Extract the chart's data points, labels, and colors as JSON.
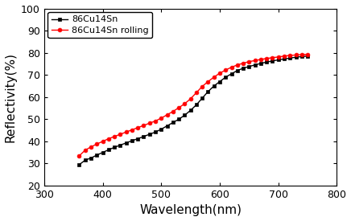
{
  "series1_label": "86Cu14Sn",
  "series2_label": "86Cu14Sn rolling",
  "series1_color": "black",
  "series2_color": "red",
  "series1_marker": "s",
  "series2_marker": "o",
  "wavelength": [
    360,
    370,
    380,
    390,
    400,
    410,
    420,
    430,
    440,
    450,
    460,
    470,
    480,
    490,
    500,
    510,
    520,
    530,
    540,
    550,
    560,
    570,
    580,
    590,
    600,
    610,
    620,
    630,
    640,
    650,
    660,
    670,
    680,
    690,
    700,
    710,
    720,
    730,
    740,
    750
  ],
  "reflectivity_86Cu14Sn": [
    29.5,
    31.5,
    32.5,
    33.8,
    35.0,
    36.2,
    37.3,
    38.3,
    39.3,
    40.3,
    41.2,
    42.2,
    43.2,
    44.2,
    45.5,
    47.0,
    48.5,
    50.0,
    51.8,
    54.0,
    56.5,
    59.5,
    62.5,
    65.0,
    67.0,
    69.0,
    70.5,
    72.0,
    73.0,
    73.8,
    74.5,
    75.2,
    75.8,
    76.3,
    76.8,
    77.2,
    77.6,
    78.0,
    78.3,
    78.5
  ],
  "reflectivity_rolling": [
    33.5,
    36.0,
    37.5,
    38.8,
    40.0,
    41.2,
    42.2,
    43.2,
    44.2,
    45.2,
    46.2,
    47.2,
    48.2,
    49.2,
    50.5,
    52.0,
    53.5,
    55.2,
    57.0,
    59.2,
    62.0,
    64.8,
    67.0,
    69.0,
    70.8,
    72.2,
    73.5,
    74.5,
    75.3,
    76.0,
    76.5,
    77.0,
    77.4,
    77.8,
    78.1,
    78.5,
    78.8,
    79.0,
    79.2,
    79.3
  ],
  "xlabel": "Wavelength(nm)",
  "ylabel": "Reflectivity(%)",
  "xlim": [
    300,
    800
  ],
  "ylim": [
    20,
    100
  ],
  "xticks": [
    300,
    400,
    500,
    600,
    700,
    800
  ],
  "yticks": [
    20,
    30,
    40,
    50,
    60,
    70,
    80,
    90,
    100
  ],
  "markersize": 3.5,
  "linewidth": 1.0,
  "axis_fontsize": 11,
  "tick_fontsize": 9,
  "legend_fontsize": 8
}
